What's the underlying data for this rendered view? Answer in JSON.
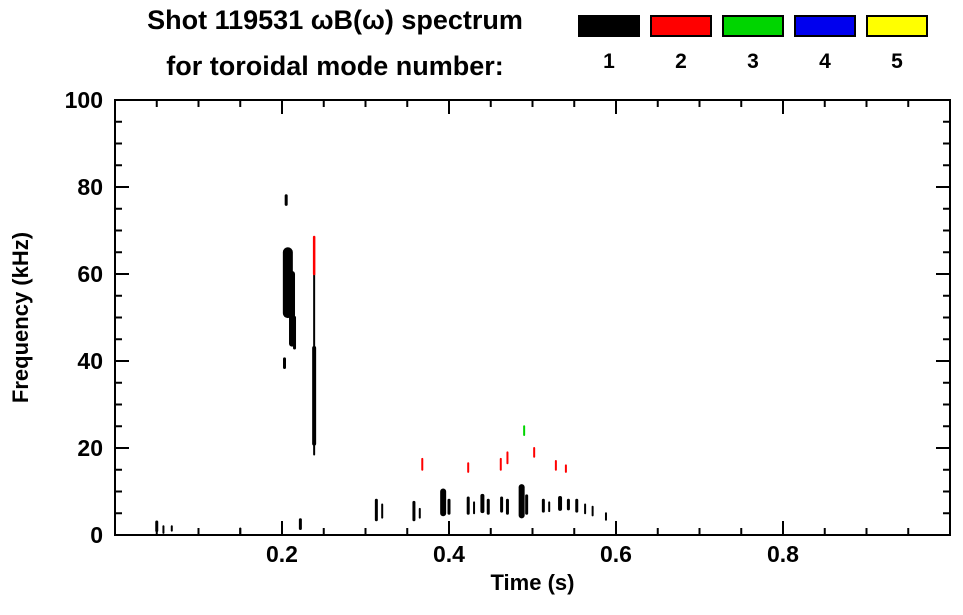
{
  "title": {
    "line1": "Shot 119531 ωB(ω) spectrum",
    "line2": "for toroidal mode number:"
  },
  "legend": {
    "entries": [
      {
        "label": "1",
        "color": "#000000"
      },
      {
        "label": "2",
        "color": "#ff0000"
      },
      {
        "label": "3",
        "color": "#00d500"
      },
      {
        "label": "4",
        "color": "#0000ee"
      },
      {
        "label": "5",
        "color": "#ffff00"
      }
    ]
  },
  "chart_data": {
    "type": "scatter",
    "title": "Shot 119531 ωB(ω) spectrum for toroidal mode number:",
    "xlabel": "Time (s)",
    "ylabel": "Frequency (kHz)",
    "xlim": [
      0,
      1.0
    ],
    "ylim": [
      0,
      100
    ],
    "x_ticks": [
      {
        "v": 0.2,
        "label": "0.2"
      },
      {
        "v": 0.4,
        "label": "0.4"
      },
      {
        "v": 0.6,
        "label": "0.6"
      },
      {
        "v": 0.8,
        "label": "0.8"
      }
    ],
    "x_minor_step": 0.05,
    "y_ticks": [
      {
        "v": 0,
        "label": "0"
      },
      {
        "v": 20,
        "label": "20"
      },
      {
        "v": 40,
        "label": "40"
      },
      {
        "v": 60,
        "label": "60"
      },
      {
        "v": 80,
        "label": "80"
      },
      {
        "v": 100,
        "label": "100"
      }
    ],
    "y_minor_step": 5,
    "grid": false,
    "legend_position": "top-right",
    "series": [
      {
        "name": "n=1",
        "color": "#000000",
        "segments": [
          {
            "t": 0.05,
            "f0": 1.0,
            "f1": 3.0,
            "w": 3
          },
          {
            "t": 0.058,
            "f0": 0.5,
            "f1": 2.0,
            "w": 2
          },
          {
            "t": 0.068,
            "f0": 1.0,
            "f1": 2.0,
            "w": 2
          },
          {
            "t": 0.15,
            "f0": 0.3,
            "f1": 1.5,
            "w": 2
          },
          {
            "t": 0.205,
            "f0": 76.0,
            "f1": 78.0,
            "w": 3
          },
          {
            "t": 0.203,
            "f0": 38.5,
            "f1": 40.5,
            "w": 3
          },
          {
            "t": 0.207,
            "f0": 51.0,
            "f1": 65.0,
            "w": 10
          },
          {
            "t": 0.212,
            "f0": 44.0,
            "f1": 60.0,
            "w": 6
          },
          {
            "t": 0.215,
            "f0": 43.0,
            "f1": 50.0,
            "w": 3
          },
          {
            "t": 0.222,
            "f0": 1.5,
            "f1": 3.5,
            "w": 3
          },
          {
            "t": 0.2385,
            "f0": 21.0,
            "f1": 43.0,
            "w": 4
          },
          {
            "t": 0.2385,
            "f0": 43.0,
            "f1": 60.0,
            "w": 2
          },
          {
            "t": 0.2385,
            "f0": 18.5,
            "f1": 21.0,
            "w": 2
          },
          {
            "t": 0.313,
            "f0": 3.5,
            "f1": 8.0,
            "w": 3
          },
          {
            "t": 0.32,
            "f0": 4.0,
            "f1": 7.0,
            "w": 2
          },
          {
            "t": 0.358,
            "f0": 3.5,
            "f1": 7.5,
            "w": 3
          },
          {
            "t": 0.365,
            "f0": 4.0,
            "f1": 6.0,
            "w": 2
          },
          {
            "t": 0.393,
            "f0": 5.0,
            "f1": 10.0,
            "w": 6
          },
          {
            "t": 0.4,
            "f0": 5.0,
            "f1": 8.0,
            "w": 3
          },
          {
            "t": 0.423,
            "f0": 5.0,
            "f1": 8.5,
            "w": 3
          },
          {
            "t": 0.43,
            "f0": 5.0,
            "f1": 7.5,
            "w": 2
          },
          {
            "t": 0.44,
            "f0": 5.5,
            "f1": 9.0,
            "w": 4
          },
          {
            "t": 0.447,
            "f0": 5.0,
            "f1": 8.0,
            "w": 3
          },
          {
            "t": 0.463,
            "f0": 5.5,
            "f1": 8.5,
            "w": 3
          },
          {
            "t": 0.47,
            "f0": 5.0,
            "f1": 8.0,
            "w": 3
          },
          {
            "t": 0.487,
            "f0": 4.5,
            "f1": 11.0,
            "w": 6
          },
          {
            "t": 0.493,
            "f0": 5.0,
            "f1": 9.0,
            "w": 3
          },
          {
            "t": 0.513,
            "f0": 5.5,
            "f1": 8.0,
            "w": 3
          },
          {
            "t": 0.52,
            "f0": 5.5,
            "f1": 7.5,
            "w": 2
          },
          {
            "t": 0.533,
            "f0": 6.0,
            "f1": 8.5,
            "w": 4
          },
          {
            "t": 0.543,
            "f0": 6.0,
            "f1": 8.0,
            "w": 3
          },
          {
            "t": 0.553,
            "f0": 5.5,
            "f1": 8.0,
            "w": 3
          },
          {
            "t": 0.563,
            "f0": 5.0,
            "f1": 7.0,
            "w": 2
          },
          {
            "t": 0.572,
            "f0": 4.5,
            "f1": 6.5,
            "w": 2
          },
          {
            "t": 0.588,
            "f0": 3.5,
            "f1": 5.0,
            "w": 2
          }
        ]
      },
      {
        "name": "n=2",
        "color": "#ff0000",
        "segments": [
          {
            "t": 0.2385,
            "f0": 60.0,
            "f1": 68.5,
            "w": 2.5
          },
          {
            "t": 0.368,
            "f0": 15.0,
            "f1": 17.5,
            "w": 2
          },
          {
            "t": 0.423,
            "f0": 14.5,
            "f1": 16.5,
            "w": 2
          },
          {
            "t": 0.462,
            "f0": 15.0,
            "f1": 17.5,
            "w": 2
          },
          {
            "t": 0.47,
            "f0": 16.5,
            "f1": 19.0,
            "w": 2
          },
          {
            "t": 0.502,
            "f0": 18.0,
            "f1": 20.0,
            "w": 2
          },
          {
            "t": 0.528,
            "f0": 15.0,
            "f1": 17.0,
            "w": 2
          },
          {
            "t": 0.54,
            "f0": 14.5,
            "f1": 16.0,
            "w": 2
          }
        ]
      },
      {
        "name": "n=3",
        "color": "#00d500",
        "segments": [
          {
            "t": 0.49,
            "f0": 23.0,
            "f1": 25.0,
            "w": 2
          }
        ]
      },
      {
        "name": "n=4",
        "color": "#0000ee",
        "segments": []
      },
      {
        "name": "n=5",
        "color": "#ffff00",
        "segments": []
      }
    ]
  }
}
